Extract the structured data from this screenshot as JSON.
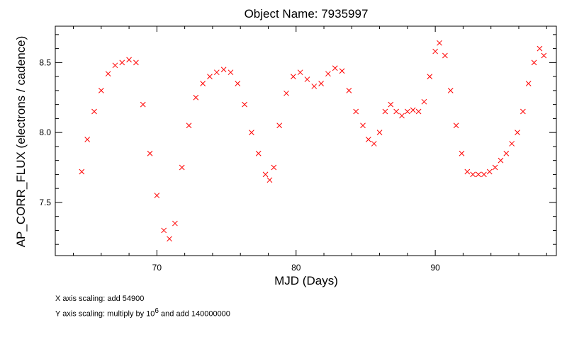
{
  "chart_data": {
    "type": "scatter",
    "title": "Object Name:  7935997",
    "xlabel": "MJD (Days)",
    "ylabel": "AP_CORR_FLUX (electrons / cadence)",
    "xlim": [
      62.7,
      98.7
    ],
    "ylim": [
      7.12,
      8.76
    ],
    "x_ticks": [
      70,
      80,
      90
    ],
    "y_ticks": [
      7.5,
      8.0,
      8.5
    ],
    "x_tick_labels": [
      "70",
      "80",
      "90"
    ],
    "y_tick_labels": [
      "7.5",
      "8.0",
      "8.5"
    ],
    "grid": false,
    "marker": "x",
    "marker_color": "#ff0000",
    "series": [
      {
        "values_description_free": true,
        "x": [
          64.6,
          65.0,
          65.5,
          66.0,
          66.5,
          67.0,
          67.5,
          68.0,
          68.5,
          69.0,
          69.5,
          70.0,
          70.5,
          70.9,
          71.3,
          71.8,
          72.3,
          72.8,
          73.3,
          73.8,
          74.3,
          74.8,
          75.3,
          75.8,
          76.3,
          76.8,
          77.3,
          77.8,
          78.1,
          78.4,
          78.8,
          79.3,
          79.8,
          80.3,
          80.8,
          81.3,
          81.8,
          82.3,
          82.8,
          83.3,
          83.8,
          84.3,
          84.8,
          85.2,
          85.6,
          86.0,
          86.4,
          86.8,
          87.2,
          87.6,
          88.0,
          88.4,
          88.8,
          89.2,
          89.6,
          90.0,
          90.3,
          90.7,
          91.1,
          91.5,
          91.9,
          92.3,
          92.7,
          93.1,
          93.5,
          93.9,
          94.3,
          94.7,
          95.1,
          95.5,
          95.9,
          96.3,
          96.7,
          97.1,
          97.5,
          97.8
        ],
        "y": [
          7.72,
          7.95,
          8.15,
          8.3,
          8.42,
          8.48,
          8.5,
          8.52,
          8.5,
          8.2,
          7.85,
          7.55,
          7.3,
          7.24,
          7.35,
          7.75,
          8.05,
          8.25,
          8.35,
          8.4,
          8.43,
          8.45,
          8.43,
          8.35,
          8.2,
          8.0,
          7.85,
          7.7,
          7.66,
          7.75,
          8.05,
          8.28,
          8.4,
          8.43,
          8.38,
          8.33,
          8.35,
          8.42,
          8.46,
          8.44,
          8.3,
          8.15,
          8.05,
          7.95,
          7.92,
          8.0,
          8.15,
          8.2,
          8.15,
          8.12,
          8.15,
          8.16,
          8.15,
          8.22,
          8.4,
          8.58,
          8.64,
          8.55,
          8.3,
          8.05,
          7.85,
          7.72,
          7.7,
          7.7,
          7.7,
          7.72,
          7.75,
          7.8,
          7.85,
          7.92,
          8.0,
          8.15,
          8.35,
          8.5,
          8.6,
          8.55
        ]
      }
    ]
  },
  "notes": {
    "x_scaling": "X axis scaling: add 54900",
    "y_scaling_prefix": "Y axis scaling: multiply by 10",
    "y_scaling_exp": "6",
    "y_scaling_suffix": " and add 140000000"
  }
}
